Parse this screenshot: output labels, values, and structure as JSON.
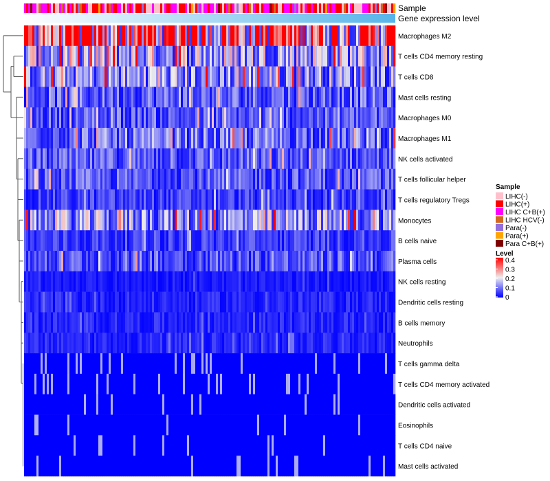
{
  "chart_data": {
    "type": "heatmap",
    "annotation_labels": [
      "Sample",
      "Gene expression level"
    ],
    "rows": [
      "Macrophages M2",
      "T cells CD4 memory resting",
      "T cells CD8",
      "Mast cells resting",
      "Macrophages M0",
      "Macrophages M1",
      "NK cells activated",
      "T cells follicular helper",
      "T cells regulatory  Tregs",
      "Monocytes",
      "B cells naive",
      "Plasma cells",
      "NK cells resting",
      "Dendritic cells resting",
      "B cells memory",
      "Neutrophils",
      "T cells gamma delta",
      "T cells CD4 memory activated",
      "Dendritic cells activated",
      "Eosinophils",
      "T cells CD4 naive",
      "Mast cells activated"
    ],
    "approx_row_mean_level": [
      0.33,
      0.15,
      0.12,
      0.08,
      0.07,
      0.09,
      0.07,
      0.07,
      0.05,
      0.12,
      0.05,
      0.07,
      0.02,
      0.03,
      0.03,
      0.03,
      0.01,
      0.01,
      0.01,
      0.01,
      0.01,
      0.01
    ],
    "n_samples": 180,
    "legend_sample": {
      "title": "Sample",
      "items": [
        {
          "label": "LIHC(-)",
          "color": "#FFC0CB"
        },
        {
          "label": "LIHC(+)",
          "color": "#FF0000"
        },
        {
          "label": "LIHC C+B(+)",
          "color": "#FF00FF"
        },
        {
          "label": "LIHC HCV(-)",
          "color": "#D2691E"
        },
        {
          "label": "Para(-)",
          "color": "#9370DB"
        },
        {
          "label": "Para(+)",
          "color": "#FFA500"
        },
        {
          "label": "Para C+B(+)",
          "color": "#800000"
        }
      ]
    },
    "legend_level": {
      "title": "Level",
      "ticks": [
        "0.4",
        "0.3",
        "0.2",
        "0.1",
        "0"
      ],
      "range": [
        0,
        0.4
      ],
      "colors": {
        "low": "#0000FF",
        "mid": "#EEEEEE",
        "high": "#FF0000"
      }
    },
    "gene_expression_colors": {
      "low": "#FFFFFF",
      "high": "#56B4E9"
    }
  }
}
